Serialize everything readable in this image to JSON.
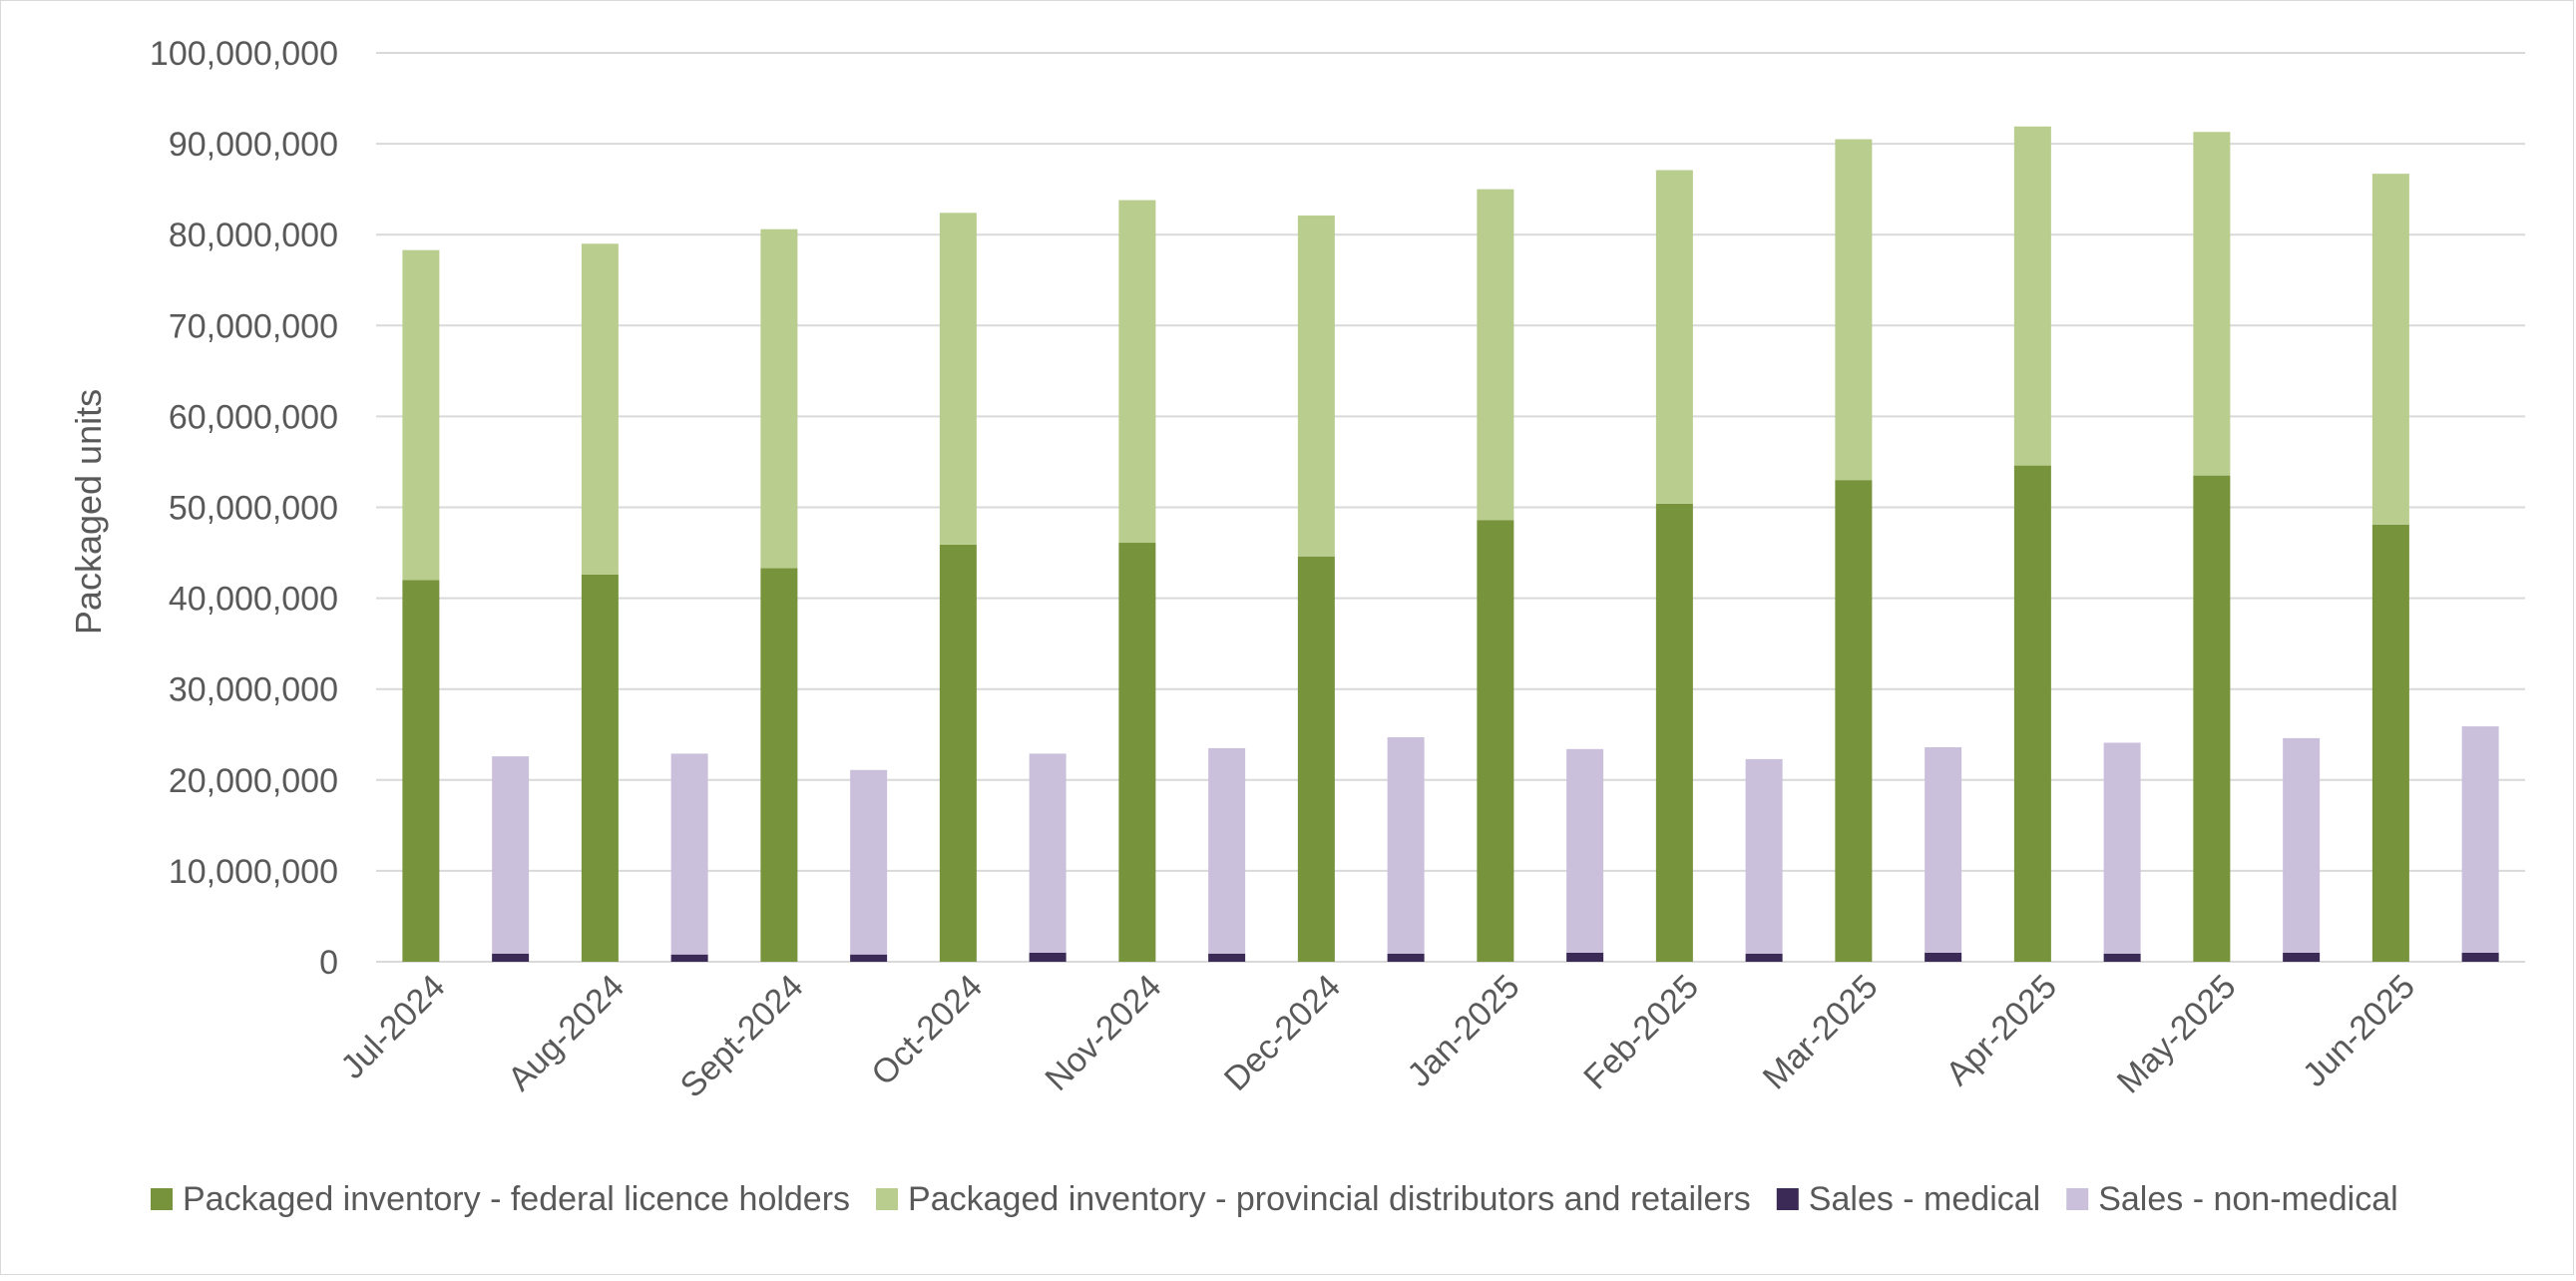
{
  "chart_data": {
    "type": "bar",
    "stacked": true,
    "grouping": "two stacks per category",
    "title": "",
    "xlabel": "",
    "ylabel": "Packaged units",
    "ylim": [
      0,
      100000000
    ],
    "y_ticks": [
      0,
      10000000,
      20000000,
      30000000,
      40000000,
      50000000,
      60000000,
      70000000,
      80000000,
      90000000,
      100000000
    ],
    "y_tick_labels": [
      "0",
      "10,000,000",
      "20,000,000",
      "30,000,000",
      "40,000,000",
      "50,000,000",
      "60,000,000",
      "70,000,000",
      "80,000,000",
      "90,000,000",
      "100,000,000"
    ],
    "grid": true,
    "legend_position": "bottom",
    "categories": [
      "Jul-2024",
      "Aug-2024",
      "Sept-2024",
      "Oct-2024",
      "Nov-2024",
      "Dec-2024",
      "Jan-2025",
      "Feb-2025",
      "Mar-2025",
      "Apr-2025",
      "May-2025",
      "Jun-2025"
    ],
    "series": [
      {
        "name": "Packaged inventory - federal licence holders",
        "stack": "inventory",
        "color": "#77933c",
        "values": [
          42000000,
          42600000,
          43300000,
          45900000,
          46100000,
          44600000,
          48600000,
          50400000,
          53000000,
          54600000,
          53500000,
          48100000
        ]
      },
      {
        "name": "Packaged inventory - provincial distributors and retailers",
        "stack": "inventory",
        "color": "#b9cd8e",
        "values": [
          36300000,
          36400000,
          37300000,
          36500000,
          37700000,
          37500000,
          36400000,
          36700000,
          37500000,
          37300000,
          37800000,
          38600000
        ]
      },
      {
        "name": "Sales - medical",
        "stack": "sales",
        "color": "#3b2a55",
        "values": [
          900000,
          800000,
          800000,
          1000000,
          900000,
          900000,
          1000000,
          900000,
          1000000,
          900000,
          1000000,
          1000000
        ]
      },
      {
        "name": "Sales - non-medical",
        "stack": "sales",
        "color": "#cbc0db",
        "values": [
          21700000,
          22100000,
          20300000,
          21900000,
          22600000,
          23800000,
          22400000,
          21400000,
          22600000,
          23200000,
          23600000,
          24900000
        ]
      }
    ]
  }
}
